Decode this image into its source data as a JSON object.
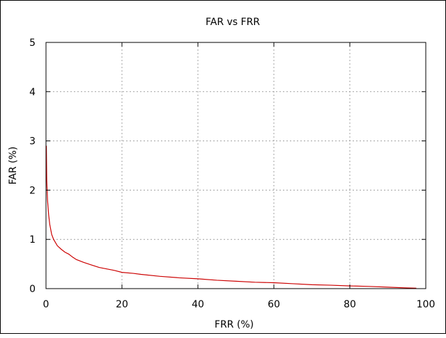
{
  "chart_data": {
    "type": "line",
    "title": "FAR vs FRR",
    "xlabel": "FRR (%)",
    "ylabel": "FAR (%)",
    "xlim": [
      0,
      100
    ],
    "ylim": [
      0,
      5
    ],
    "x_ticks": [
      0,
      20,
      40,
      60,
      80,
      100
    ],
    "y_ticks": [
      0,
      1,
      2,
      3,
      4,
      5
    ],
    "grid": true,
    "series": [
      {
        "color": "#cc0000",
        "x": [
          0.1,
          0.2,
          0.4,
          0.7,
          1.0,
          1.5,
          2.0,
          3.0,
          4.0,
          5.0,
          6.0,
          7.0,
          8.0,
          10.0,
          12.0,
          14.0,
          16.0,
          18.0,
          20.0,
          23.0,
          25.0,
          30.0,
          35.0,
          40.0,
          45.0,
          50.0,
          55.0,
          60.0,
          65.0,
          70.0,
          75.0,
          80.0,
          85.0,
          90.0,
          95.0,
          97.5
        ],
        "y": [
          2.9,
          2.2,
          1.8,
          1.5,
          1.3,
          1.1,
          1.0,
          0.87,
          0.8,
          0.74,
          0.7,
          0.64,
          0.59,
          0.53,
          0.48,
          0.43,
          0.4,
          0.37,
          0.33,
          0.31,
          0.29,
          0.25,
          0.22,
          0.2,
          0.17,
          0.15,
          0.13,
          0.12,
          0.1,
          0.08,
          0.07,
          0.055,
          0.045,
          0.03,
          0.015,
          0.01
        ]
      }
    ]
  }
}
